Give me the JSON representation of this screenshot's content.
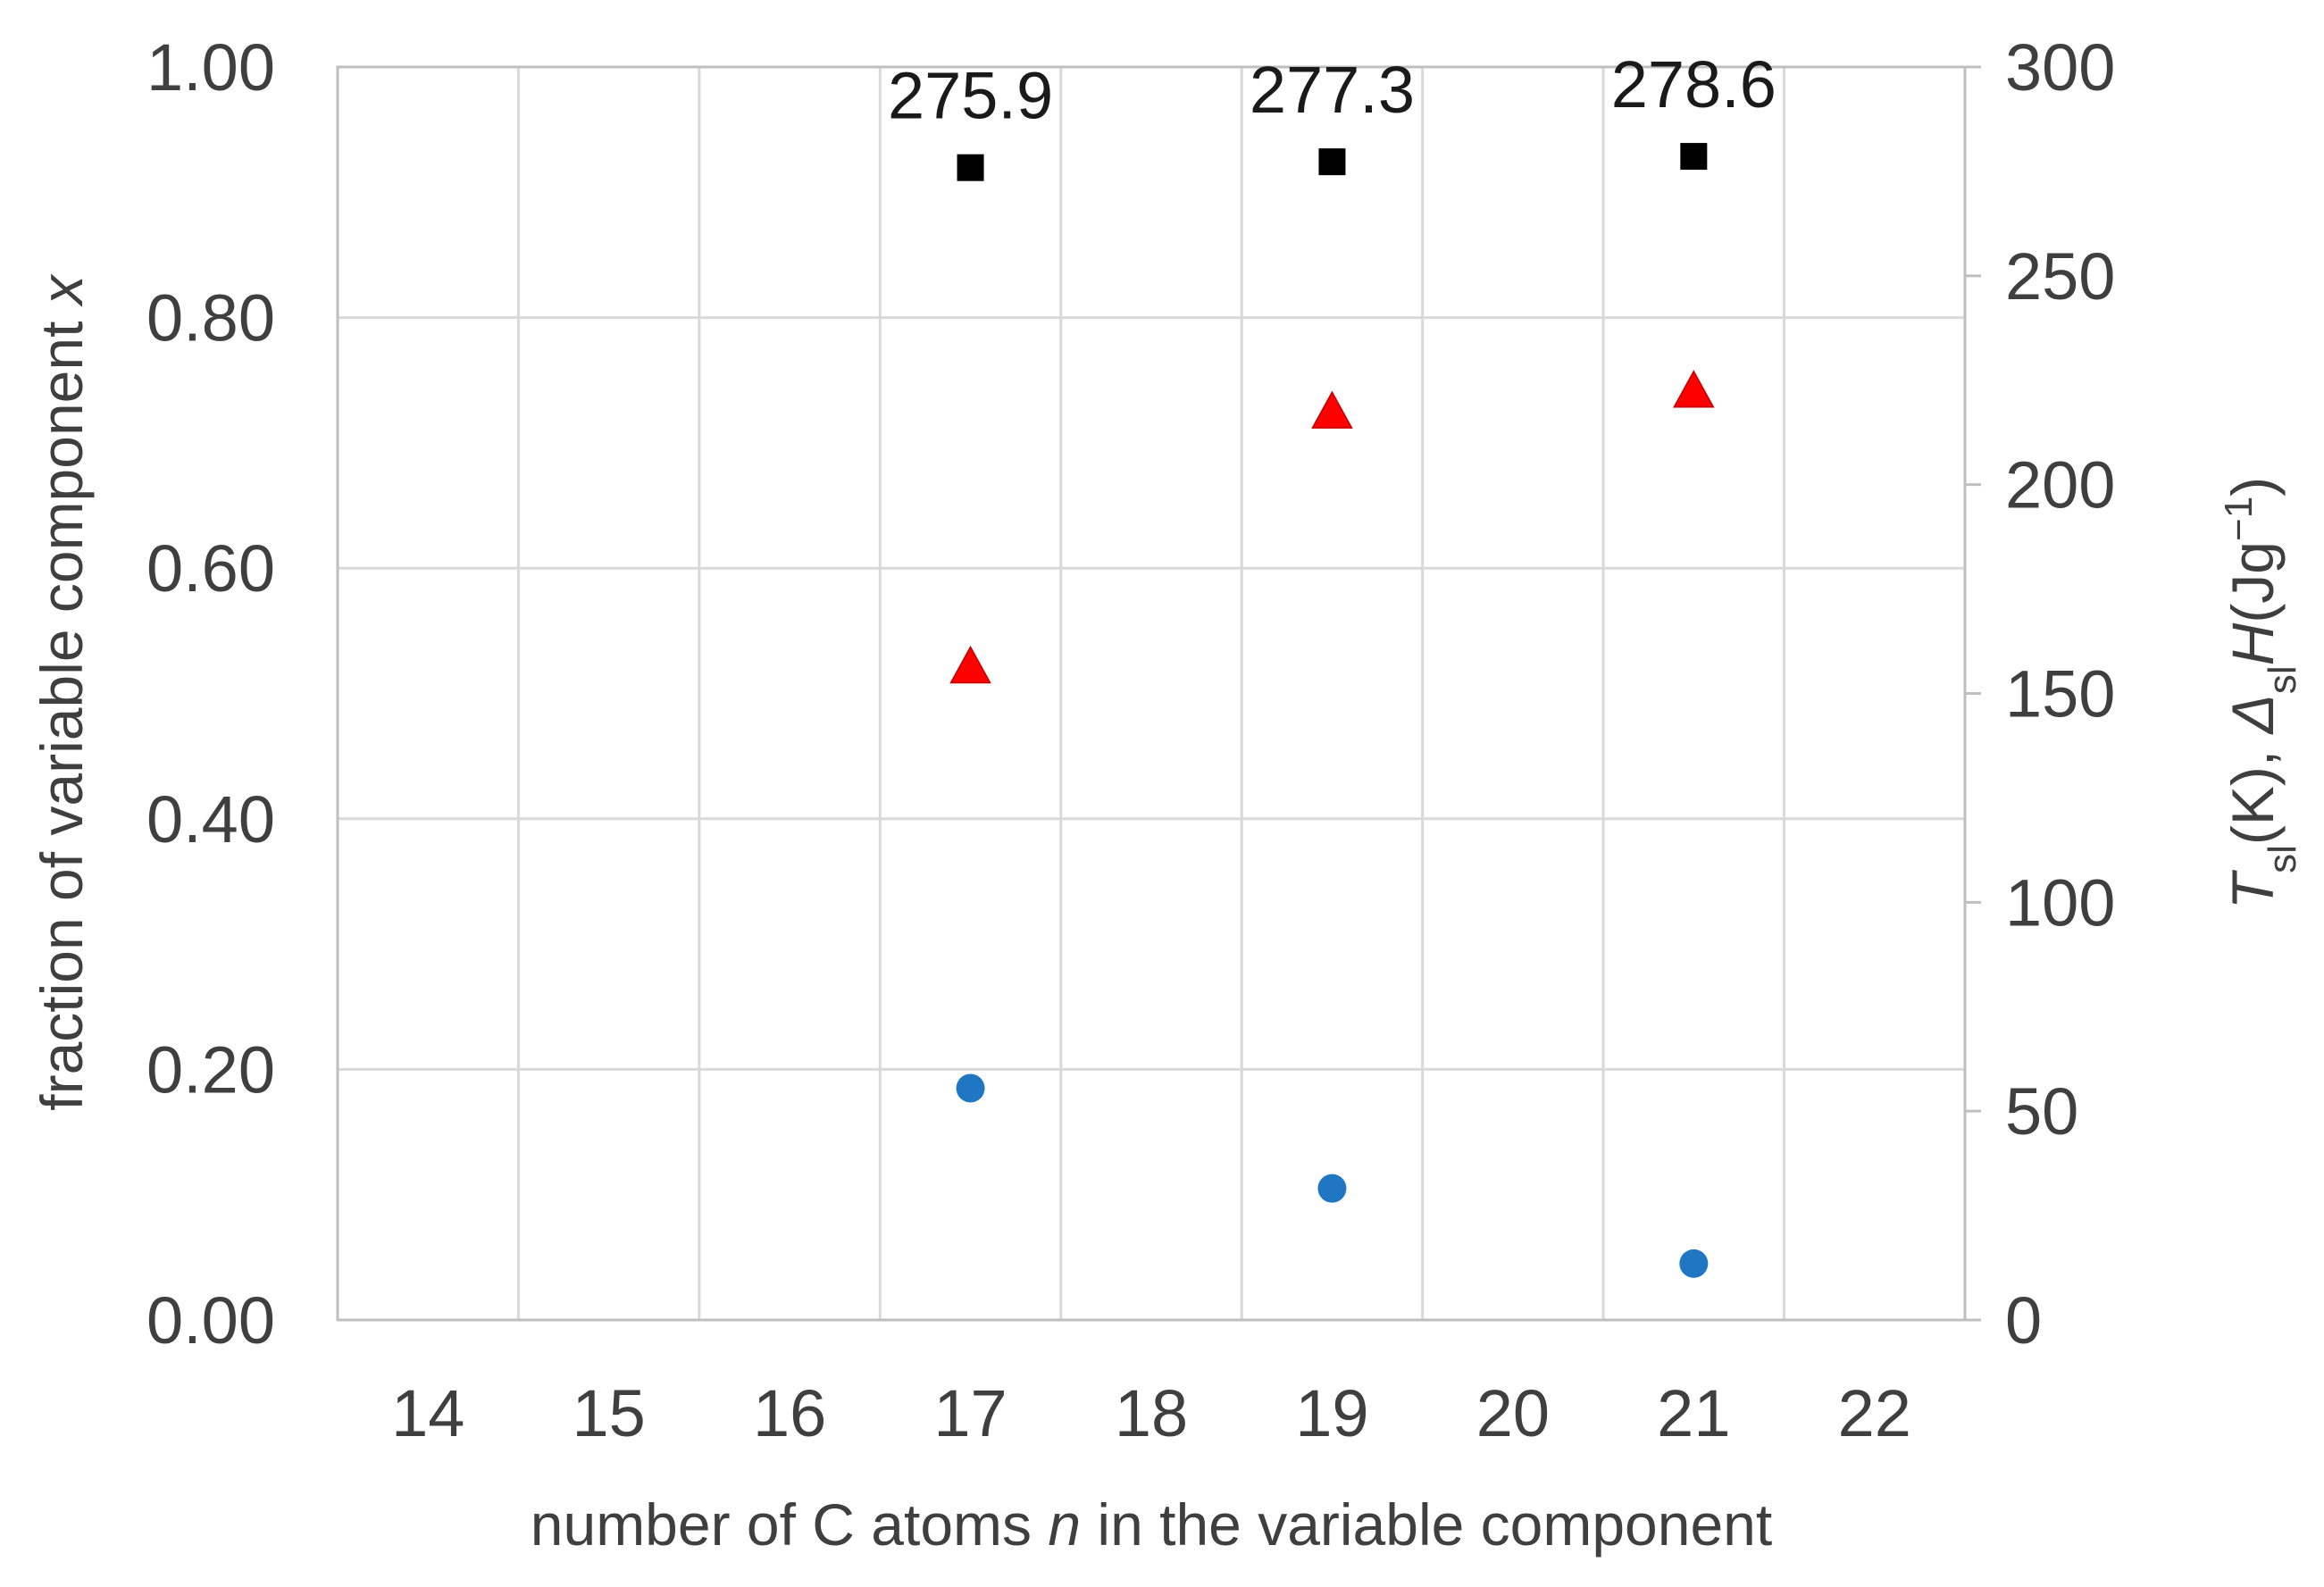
{
  "chart_data": {
    "type": "scatter",
    "title": "",
    "xlabel": "number of C atoms n in the variable component",
    "xlabel_parts": [
      "number of C atoms ",
      "n",
      " in the variable component"
    ],
    "ylabel_left": "fraction of variable component x",
    "ylabel_left_parts": [
      "fraction of variable component ",
      "x"
    ],
    "ylabel_right": "Tsl(K), ΔslH(Jg−1)",
    "ylabel_right_parts": {
      "t": "T",
      "t_sub": "sl",
      "k": "(K), ",
      "delta": "Δ",
      "delta_sub": "sl",
      "h": "H",
      "unit": "(Jg",
      "exp": "−1",
      "close": ")"
    },
    "x_categories": [
      "14",
      "15",
      "16",
      "17",
      "18",
      "19",
      "20",
      "21",
      "22"
    ],
    "y_left_ticks": [
      "0.00",
      "0.20",
      "0.40",
      "0.60",
      "0.80",
      "1.00"
    ],
    "y_right_ticks": [
      "0",
      "50",
      "100",
      "150",
      "200",
      "250",
      "300"
    ],
    "ylim_left": [
      0,
      1
    ],
    "ylim_right": [
      0,
      300
    ],
    "grid": true,
    "legend": "none",
    "series": [
      {
        "axis": "right",
        "marker": "square",
        "color": "#000000",
        "x": [
          17,
          19,
          21
        ],
        "y": [
          275.9,
          277.3,
          278.6
        ],
        "labels": [
          "275.9",
          "277.3",
          "278.6"
        ]
      },
      {
        "axis": "right",
        "marker": "triangle",
        "color": "#ff0000",
        "x": [
          17,
          19,
          21
        ],
        "y": [
          156,
          217,
          222
        ]
      },
      {
        "axis": "left",
        "marker": "circle",
        "color": "#1f77c4",
        "x": [
          17,
          19,
          21
        ],
        "y": [
          0.185,
          0.105,
          0.045
        ]
      }
    ]
  }
}
